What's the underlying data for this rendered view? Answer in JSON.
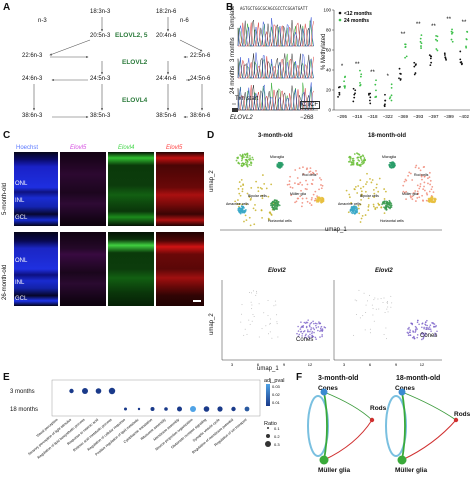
{
  "panels": {
    "a": "A",
    "b": "B",
    "c": "C",
    "d": "D",
    "e": "E",
    "f": "F"
  },
  "panelA": {
    "n3_label": "n-3",
    "n6_label": "n-6",
    "enz1": "ELOVL2, 5",
    "enz2": "ELOVL2",
    "enz3": "ELOVL4",
    "n3": [
      "18:3n-3",
      "20:5n-3",
      "22:6n-3",
      "24:5n-3",
      "24:6n-3",
      "38:6n-3",
      "38:5n-3"
    ],
    "n6": [
      "18:2n-6",
      "20:4n-6",
      "22:5n-6",
      "24:4n-6",
      "24:5n-6",
      "38:6n-6",
      "38:5n-6"
    ]
  },
  "panelB": {
    "template_label": "Template",
    "m3_label": "3 months",
    "m24_label": "24 months",
    "txn_label": "Txn start",
    "ctcf_label": "CTCF",
    "gene_label": "ELOVL2",
    "pos_268": "−268",
    "seq_text": "AGTGCTGGCGCAGCGCCTCGGATGATT",
    "ylabel": "% Methylated",
    "yticks": [
      "0",
      "20",
      "40",
      "60",
      "80",
      "100"
    ],
    "legend": [
      {
        "name": "<12 months",
        "color": "#111111"
      },
      {
        "name": "24 months",
        "color": "#3cc04a"
      }
    ],
    "xticks": [
      "−295",
      "−316",
      "−318",
      "−322",
      "−369",
      "−393",
      "−397",
      "−399",
      "−402"
    ],
    "sig": [
      "*",
      "**",
      "**",
      "*",
      "**",
      "**",
      "**",
      "**",
      "**"
    ]
  },
  "panelC": {
    "channels": [
      {
        "name": "Hoechst",
        "color": "#5b78ff"
      },
      {
        "name": "Elovl5",
        "color": "#d44be0"
      },
      {
        "name": "Elovl4",
        "color": "#43d64a"
      },
      {
        "name": "Elovl5",
        "color": "#ff4040"
      }
    ],
    "rows": [
      "5-month-old",
      "26-month-old"
    ],
    "layers": [
      "ONL",
      "INL",
      "GCL"
    ]
  },
  "panelD": {
    "titles": [
      "3-month-old",
      "18-month-old"
    ],
    "elovl_titles": [
      "Elovl2",
      "Elovl2"
    ],
    "umap1": "umap_1",
    "umap2": "umap_2",
    "clusters": [
      "Bipolar cells",
      "Epithelial cells",
      "Microglia",
      "Rod cells",
      "RPE",
      "Müller glia",
      "Amacrine cells",
      "Astrocytes",
      "Horizontal cells",
      "Retinal ganglion cells",
      "Cones"
    ],
    "xticks": [
      "3",
      "6",
      "9",
      "12"
    ],
    "yticks": [
      "6",
      "8",
      "10",
      "12"
    ],
    "cones_label": "Cones"
  },
  "panelE": {
    "rows": [
      "3 months",
      "18 months"
    ],
    "legend_title_pval": "adj_pval",
    "legend_title_ratio": "Ratio",
    "pval_ticks": [
      "0.03",
      "0.02",
      "0.01"
    ],
    "ratio_ticks": [
      "0.1",
      "0.2",
      "0.3"
    ],
    "terms": [
      "Visual perception",
      "Sensory perception of light stimulus",
      "Regulation of lipid biosynthetic process",
      "Response to retinoic acid",
      "Retinoic acid metabolic process",
      "Regulation of cellular response",
      "Positive regulation of lipid metabolic",
      "Cytoplasmic translation",
      "Ribosome assembly",
      "Membrane assembly",
      "Neuron projection organization",
      "Glutamate receptor signaling",
      "Synaptic vesicle cycle",
      "Regulation of membrane potential",
      "Regulation of ion transport"
    ]
  },
  "panelF": {
    "titles": [
      "3-month-old",
      "18-month-old"
    ],
    "nodes": [
      "Cones",
      "Rods",
      "Müller glia"
    ]
  }
}
